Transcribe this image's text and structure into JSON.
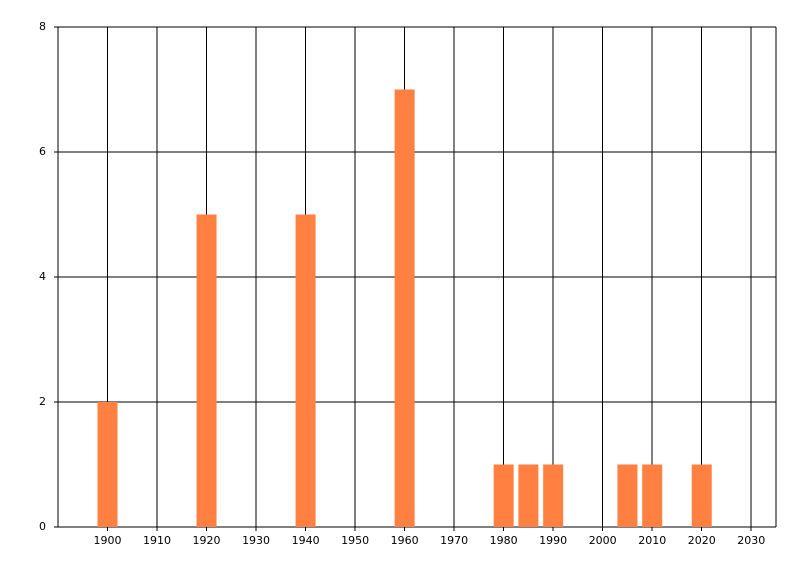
{
  "chart_data": {
    "type": "bar",
    "x": [
      1900,
      1920,
      1940,
      1960,
      1980,
      1985,
      1990,
      2005,
      2010,
      2020
    ],
    "values": [
      2,
      5,
      5,
      7,
      1,
      1,
      1,
      1,
      1,
      1
    ],
    "color": "#ff8040",
    "xlim": [
      1890,
      2035
    ],
    "xticks": [
      1900,
      1910,
      1920,
      1930,
      1940,
      1950,
      1960,
      1970,
      1980,
      1990,
      2000,
      2010,
      2020,
      2030
    ],
    "ylim": [
      0,
      8
    ],
    "yticks": [
      0,
      2,
      4,
      6,
      8
    ],
    "grid": true
  }
}
